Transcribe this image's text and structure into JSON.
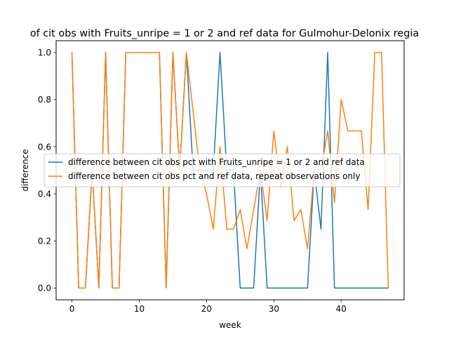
{
  "chart_data": {
    "type": "line",
    "title": "of cit obs with Fruits_unripe = 1 or 2 and ref data for Gulmohur-Delonix regia",
    "xlabel": "week",
    "ylabel": "difference",
    "xlim": [
      -2.35,
      49.35
    ],
    "ylim": [
      -0.05,
      1.05
    ],
    "xticks": [
      0,
      10,
      20,
      30,
      40
    ],
    "yticks": [
      0.0,
      0.2,
      0.4,
      0.6,
      0.8,
      1.0
    ],
    "xtick_labels": [
      "0",
      "10",
      "20",
      "30",
      "40"
    ],
    "ytick_labels": [
      "0.0",
      "0.2",
      "0.4",
      "0.6",
      "0.8",
      "1.0"
    ],
    "legend": "center-right",
    "grid": false,
    "series": [
      {
        "name": "difference between cit obs pct with Fruits_unripe = 1 or 2 and ref data",
        "color": "#1f77b4",
        "x": [
          0,
          1,
          2,
          3,
          4,
          5,
          6,
          7,
          8,
          9,
          10,
          11,
          12,
          13,
          14,
          15,
          16,
          17,
          18,
          19,
          20,
          21,
          22,
          23,
          24,
          25,
          26,
          27,
          28,
          29,
          30,
          31,
          32,
          33,
          34,
          35,
          36,
          37,
          38,
          39,
          40,
          41,
          42,
          43,
          44,
          45,
          46,
          47
        ],
        "y": [
          1,
          0,
          0,
          0.5,
          0,
          1,
          0,
          0,
          1,
          1,
          1,
          1,
          1,
          1,
          0,
          1,
          0.5,
          1,
          0.5,
          0.5,
          0.5,
          0.5,
          1,
          0.5,
          0.5,
          0,
          0,
          0,
          0.5,
          0,
          0,
          0,
          0,
          0,
          0,
          0,
          0.5,
          0.25,
          1,
          0,
          0,
          0,
          0,
          0,
          0,
          0,
          0,
          0
        ]
      },
      {
        "name": "difference between cit obs pct and ref data, repeat observations only",
        "color": "#ff7f0e",
        "x": [
          0,
          1,
          2,
          3,
          4,
          5,
          6,
          7,
          8,
          9,
          10,
          11,
          12,
          13,
          14,
          15,
          16,
          17,
          18,
          19,
          20,
          21,
          22,
          23,
          24,
          25,
          26,
          27,
          28,
          29,
          30,
          31,
          32,
          33,
          34,
          35,
          36,
          37,
          38,
          39,
          40,
          41,
          42,
          43,
          44,
          45,
          46,
          47
        ],
        "y": [
          1,
          0,
          0,
          0.5,
          0,
          1,
          0,
          0,
          1,
          1,
          1,
          1,
          1,
          1,
          0,
          1,
          0.5,
          1,
          0.75,
          0.5,
          0.4,
          0.25,
          0.6,
          0.25,
          0.25,
          0.333,
          0.167,
          0.333,
          0.5,
          0.286,
          0.667,
          0.429,
          0.6,
          0.286,
          0.333,
          0.167,
          0.5,
          0.5,
          0.667,
          0.364,
          0.8,
          0.667,
          0.667,
          0.667,
          0.333,
          1,
          1,
          0
        ]
      }
    ]
  }
}
